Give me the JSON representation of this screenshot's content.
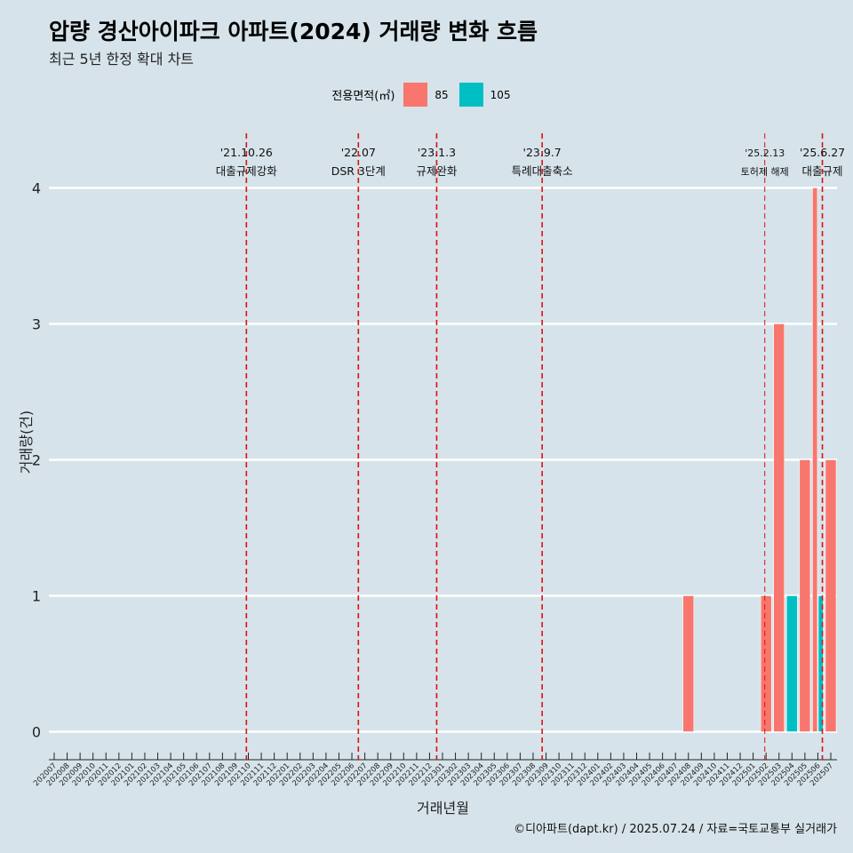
{
  "title": "압량 경산아이파크 아파트(2024) 거래량 변화 흐름",
  "subtitle": "최근 5년 한정 확대 차트",
  "source": "©디아파트(dapt.kr) / 2025.07.24 / 자료=국토교통부 실거래가",
  "legend": {
    "title": "전용면적(㎡)",
    "items": [
      {
        "label": "85",
        "color": "#f8766d"
      },
      {
        "label": "105",
        "color": "#00bfc4"
      }
    ]
  },
  "chart_data": {
    "type": "bar",
    "xlabel": "거래년월",
    "ylabel": "거래량(건)",
    "ylim": [
      0,
      4
    ],
    "yticks": [
      0,
      1,
      2,
      3,
      4
    ],
    "categories": [
      "202007",
      "202008",
      "202009",
      "202010",
      "202011",
      "202012",
      "202101",
      "202102",
      "202103",
      "202104",
      "202105",
      "202106",
      "202107",
      "202108",
      "202109",
      "202110",
      "202111",
      "202112",
      "202201",
      "202202",
      "202203",
      "202204",
      "202205",
      "202206",
      "202207",
      "202208",
      "202209",
      "202210",
      "202211",
      "202212",
      "202301",
      "202302",
      "202303",
      "202304",
      "202305",
      "202306",
      "202307",
      "202308",
      "202309",
      "202310",
      "202311",
      "202312",
      "202401",
      "202402",
      "202403",
      "202404",
      "202405",
      "202406",
      "202407",
      "202408",
      "202409",
      "202410",
      "202411",
      "202412",
      "202501",
      "202502",
      "202503",
      "202504",
      "202505",
      "202506",
      "202507"
    ],
    "series": [
      {
        "name": "85",
        "color": "#f8766d",
        "points": [
          {
            "x": "202408",
            "y": 1
          },
          {
            "x": "202502",
            "y": 1
          },
          {
            "x": "202503",
            "y": 3
          },
          {
            "x": "202505",
            "y": 2
          },
          {
            "x": "202506",
            "y": 4
          },
          {
            "x": "202507",
            "y": 2
          }
        ]
      },
      {
        "name": "105",
        "color": "#00bfc4",
        "points": [
          {
            "x": "202504",
            "y": 1
          },
          {
            "x": "202506",
            "y": 1
          }
        ]
      }
    ],
    "annotations": [
      {
        "date": "'21.10.26",
        "label": "대출규제강화",
        "x": "202110",
        "offset": 0.35
      },
      {
        "date": "'22.07",
        "label": "DSR 3단계",
        "x": "202207",
        "offset": 0.0
      },
      {
        "date": "'23.1.3",
        "label": "규제완화",
        "x": "202301",
        "offset": 0.05
      },
      {
        "date": "'23.9.7",
        "label": "특례대출축소",
        "x": "202309",
        "offset": 0.2
      },
      {
        "date": "'25.2.13",
        "label": "토허제 해제",
        "x": "202502",
        "offset": 0.4,
        "small": true
      },
      {
        "date": "'25.6.27",
        "label": "대출규제",
        "x": "202506",
        "offset": 0.85
      }
    ],
    "grid": true,
    "legend_position": "top"
  }
}
